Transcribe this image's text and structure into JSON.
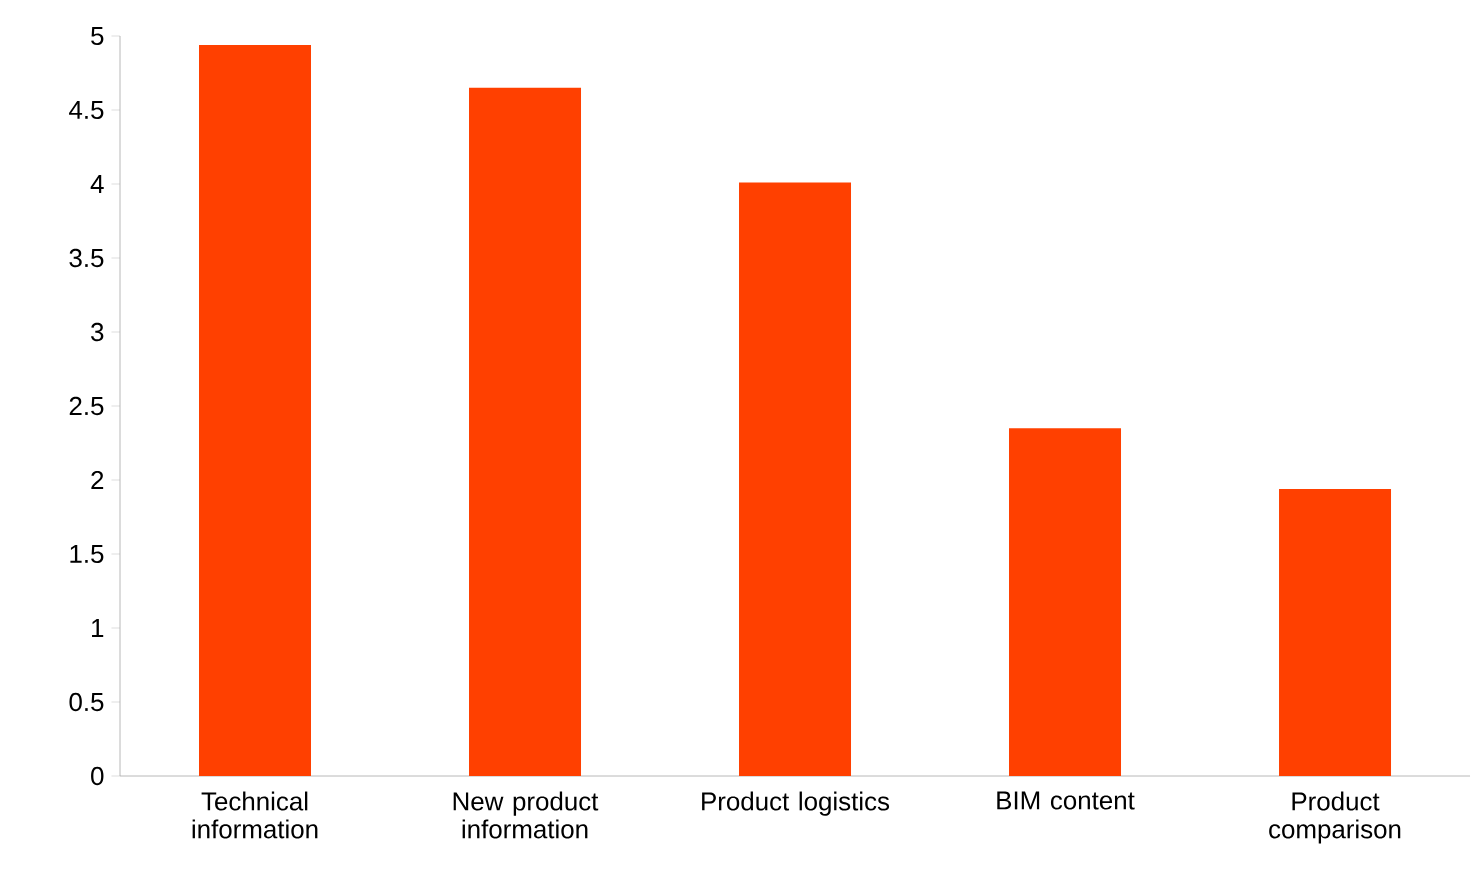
{
  "chart_data": {
    "type": "bar",
    "categories": [
      "Technical information",
      "New product information",
      "Product logistics",
      "BIM content",
      "Product comparison"
    ],
    "values": [
      4.94,
      4.65,
      4.01,
      2.35,
      1.94
    ],
    "color": "#ff4000",
    "ylim": [
      0,
      5
    ],
    "yticks": [
      0,
      0.5,
      1,
      1.5,
      2,
      2.5,
      3,
      3.5,
      4,
      4.5,
      5
    ],
    "grid": false
  }
}
